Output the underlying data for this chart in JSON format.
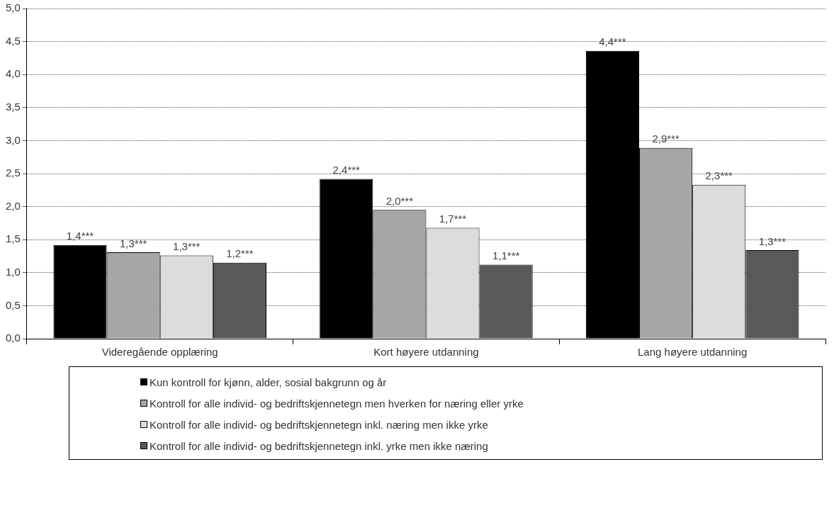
{
  "chart_data": {
    "type": "bar",
    "categories": [
      "Videregående opplæring",
      "Kort høyere utdanning",
      "Lang høyere utdanning"
    ],
    "series": [
      {
        "name": "Kun kontroll for kjønn, alder, sosial bakgrunn og år",
        "color": "#000000",
        "values": [
          1.42,
          2.42,
          4.36
        ],
        "value_labels": [
          "1,4***",
          "2,4***",
          "4,4***"
        ]
      },
      {
        "name": "Kontroll for alle individ- og bedriftskjennetegn men hverken for næring eller yrke",
        "color": "#a6a6a6",
        "values": [
          1.31,
          1.95,
          2.89
        ],
        "value_labels": [
          "1,3***",
          "2,0***",
          "2,9***"
        ]
      },
      {
        "name": "Kontroll for alle individ- og bedriftskjennetegn inkl. næring men ikke yrke",
        "color": "#dcdcdc",
        "values": [
          1.26,
          1.68,
          2.33
        ],
        "value_labels": [
          "1,3***",
          "1,7***",
          "2,3***"
        ]
      },
      {
        "name": "Kontroll for alle individ- og bedriftskjennetegn inkl. yrke men ikke næring",
        "color": "#595959",
        "values": [
          1.15,
          1.12,
          1.34
        ],
        "value_labels": [
          "1,2***",
          "1,1***",
          "1,3***"
        ]
      }
    ],
    "ylim": [
      0,
      5
    ],
    "yticks": [
      {
        "value": 0,
        "label": "0,0"
      },
      {
        "value": 0.5,
        "label": "0,5"
      },
      {
        "value": 1,
        "label": "1,0"
      },
      {
        "value": 1.5,
        "label": "1,5"
      },
      {
        "value": 2,
        "label": "2,0"
      },
      {
        "value": 2.5,
        "label": "2,5"
      },
      {
        "value": 3,
        "label": "3,0"
      },
      {
        "value": 3.5,
        "label": "3,5"
      },
      {
        "value": 4,
        "label": "4,0"
      },
      {
        "value": 4.5,
        "label": "4,5"
      },
      {
        "value": 5,
        "label": "5,0"
      }
    ],
    "grid": "y",
    "legend": "bottom"
  }
}
